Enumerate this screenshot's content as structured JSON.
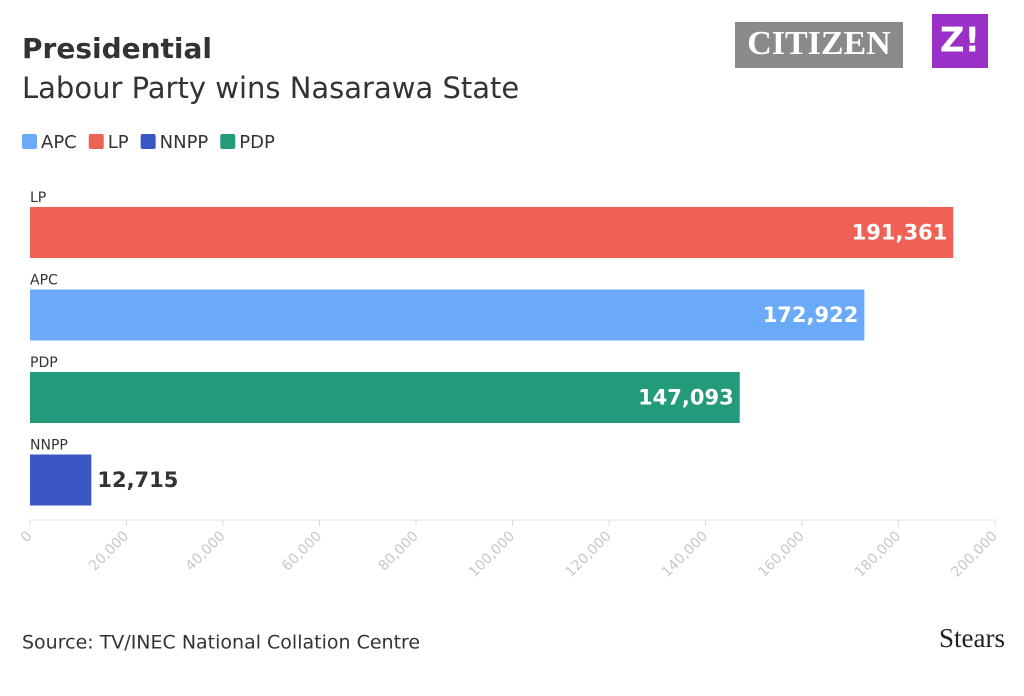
{
  "chart_data": {
    "type": "bar",
    "orientation": "horizontal",
    "title": "Presidential",
    "subtitle": "Labour Party wins Nasarawa State",
    "legend": [
      {
        "name": "APC",
        "color": "#6aaaf8"
      },
      {
        "name": "LP",
        "color": "#ef6155"
      },
      {
        "name": "NNPP",
        "color": "#3a55c4"
      },
      {
        "name": "PDP",
        "color": "#239b7b"
      }
    ],
    "categories": [
      "LP",
      "APC",
      "PDP",
      "NNPP"
    ],
    "values": [
      191361,
      172922,
      147093,
      12715
    ],
    "value_labels": [
      "191,361",
      "172,922",
      "147,093",
      "12,715"
    ],
    "colors": [
      "#ef6155",
      "#6aaaf8",
      "#239b7b",
      "#3a55c4"
    ],
    "xlim": [
      0,
      200000
    ],
    "xticks": [
      0,
      {
        "value": 20000,
        "label": "20,000"
      },
      {
        "value": 40000,
        "label": "40,000"
      },
      {
        "value": 60000,
        "label": "60,000"
      },
      {
        "value": 80000,
        "label": "80,000"
      },
      {
        "value": 100000,
        "label": "100,000"
      },
      {
        "value": 120000,
        "label": "120,000"
      },
      {
        "value": 140000,
        "label": "140,000"
      },
      {
        "value": 160000,
        "label": "160,000"
      },
      {
        "value": 180000,
        "label": "180,000"
      },
      {
        "value": 200000,
        "label": "200,000"
      }
    ],
    "source": "Source: TV/INEC National Collation Centre",
    "logos": [
      "CITIZEN",
      "Z!",
      "Stears"
    ]
  }
}
